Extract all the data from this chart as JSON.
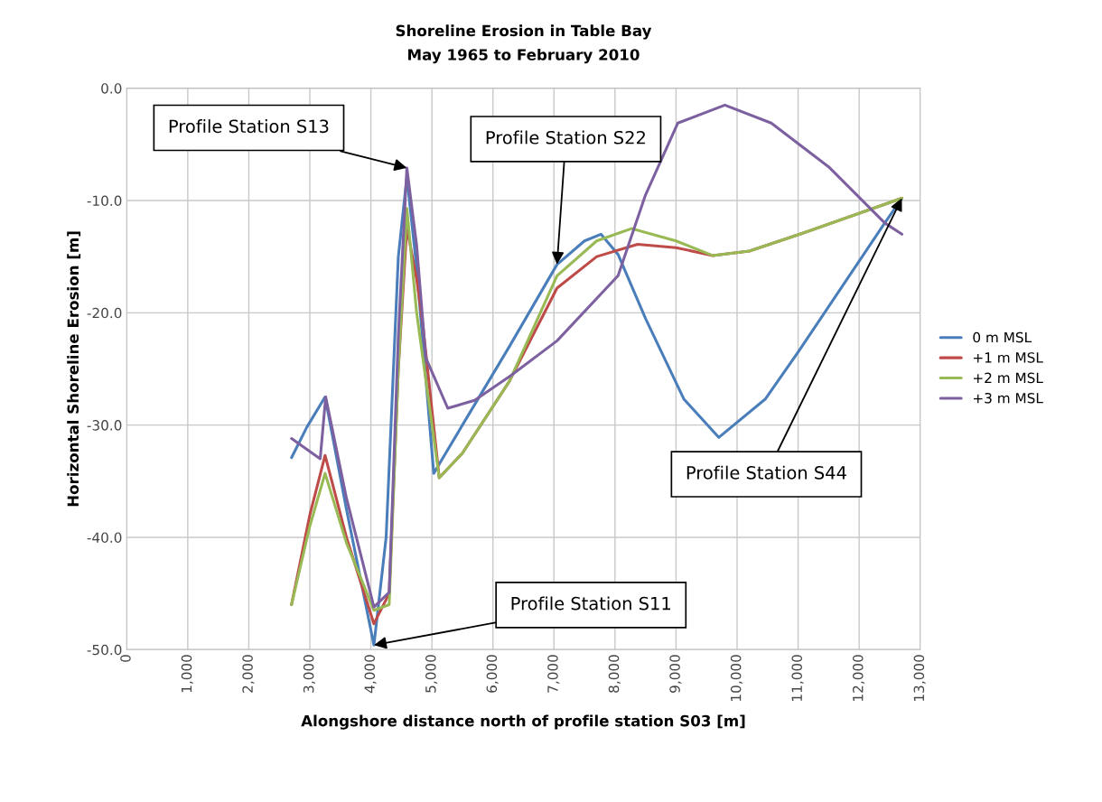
{
  "chart_data": {
    "type": "line",
    "title": "Shoreline Erosion in Table Bay",
    "subtitle": "May 1965 to February 2010",
    "xlabel": "Alongshore distance north of profile station S03 [m]",
    "ylabel": "Horizontal Shoreline Erosion [m]",
    "xlim": [
      0,
      13000
    ],
    "xticks": [
      {
        "value": 0,
        "label": "0"
      },
      {
        "value": 1000,
        "label": "1,000"
      },
      {
        "value": 2000,
        "label": "2,000"
      },
      {
        "value": 3000,
        "label": "3,000"
      },
      {
        "value": 4000,
        "label": "4,000"
      },
      {
        "value": 5000,
        "label": "5,000"
      },
      {
        "value": 6000,
        "label": "6,000"
      },
      {
        "value": 7000,
        "label": "7,000"
      },
      {
        "value": 8000,
        "label": "8,000"
      },
      {
        "value": 9000,
        "label": "9,000"
      },
      {
        "value": 10000,
        "label": "10,000"
      },
      {
        "value": 11000,
        "label": "11,000"
      },
      {
        "value": 12000,
        "label": "12,000"
      },
      {
        "value": 13000,
        "label": "13,000"
      }
    ],
    "ylim": [
      -50,
      0
    ],
    "yticks": [
      {
        "value": -50,
        "label": "-50.0"
      },
      {
        "value": -40,
        "label": "-40.0"
      },
      {
        "value": -30,
        "label": "-30.0"
      },
      {
        "value": -20,
        "label": "-20.0"
      },
      {
        "value": -10,
        "label": "-10.0"
      },
      {
        "value": 0,
        "label": "0.0"
      }
    ],
    "grid": true,
    "legend": "right",
    "marker": "none",
    "line_style": "solid",
    "series": [
      {
        "name": "0 m MSL",
        "color": "#4a7ebb",
        "x": [
          2700,
          2950,
          3250,
          3600,
          4050,
          4250,
          4450,
          4590,
          4750,
          5030,
          5500,
          6270,
          7050,
          7500,
          7770,
          8050,
          8500,
          9130,
          9700,
          10460,
          11000,
          12420,
          12700
        ],
        "values": [
          -32.9,
          -30.2,
          -27.5,
          -37.5,
          -49.6,
          -40.0,
          -15.0,
          -7.9,
          -16.0,
          -34.3,
          -30.0,
          -23.0,
          -15.7,
          -13.6,
          -13.0,
          -14.8,
          -20.5,
          -27.7,
          -31.1,
          -27.7,
          -23.5,
          -12.0,
          -9.8
        ]
      },
      {
        "name": "+1 m MSL",
        "color": "#be4b48",
        "x": [
          2700,
          3000,
          3250,
          3600,
          4050,
          4300,
          4450,
          4590,
          4750,
          4850,
          5120,
          5500,
          6270,
          7050,
          7700,
          8370,
          9000,
          9600,
          10200,
          11030,
          12700
        ],
        "values": [
          -46.0,
          -38.0,
          -32.7,
          -40.0,
          -47.7,
          -45.0,
          -25.0,
          -12.4,
          -17.0,
          -21.0,
          -34.7,
          -32.5,
          -26.1,
          -17.8,
          -15.0,
          -13.9,
          -14.2,
          -14.9,
          -14.5,
          -13.0,
          -9.8
        ]
      },
      {
        "name": "+2 m MSL",
        "color": "#98b954",
        "x": [
          2700,
          3000,
          3250,
          3600,
          4050,
          4300,
          4450,
          4590,
          4750,
          5120,
          5500,
          6270,
          7050,
          7700,
          8270,
          9000,
          9600,
          10200,
          11030,
          12700
        ],
        "values": [
          -46.0,
          -39.0,
          -34.3,
          -40.5,
          -46.5,
          -46.0,
          -25.0,
          -10.7,
          -20.0,
          -34.7,
          -32.5,
          -26.1,
          -16.7,
          -13.6,
          -12.5,
          -13.6,
          -14.9,
          -14.5,
          -13.0,
          -9.8
        ]
      },
      {
        "name": "+3 m MSL",
        "color": "#7d60a0",
        "x": [
          2700,
          3170,
          3260,
          3600,
          4050,
          4300,
          4450,
          4590,
          4750,
          4900,
          5260,
          5700,
          6290,
          7050,
          8050,
          8500,
          9030,
          9800,
          10560,
          11500,
          12420,
          12700
        ],
        "values": [
          -31.2,
          -33.0,
          -27.5,
          -36.5,
          -46.2,
          -44.9,
          -22.0,
          -7.1,
          -14.0,
          -24.0,
          -28.5,
          -27.8,
          -25.6,
          -22.5,
          -16.7,
          -9.5,
          -3.1,
          -1.5,
          -3.1,
          -7.0,
          -12.0,
          -13.0
        ]
      }
    ],
    "annotations": [
      {
        "text": "Profile Station S13",
        "x": 4590,
        "y": -7.1
      },
      {
        "text": "Profile Station S22",
        "x": 7050,
        "y": -15.7
      },
      {
        "text": "Profile Station S11",
        "x": 4050,
        "y": -49.6
      },
      {
        "text": "Profile Station S44",
        "x": 12700,
        "y": -9.8
      }
    ]
  }
}
